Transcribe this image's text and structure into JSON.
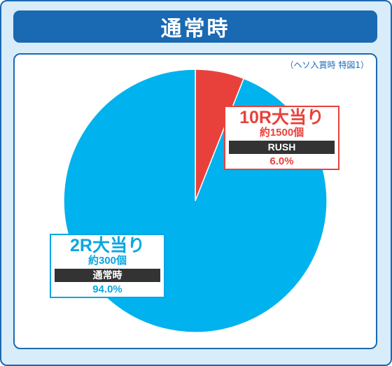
{
  "header": {
    "title": "通常時"
  },
  "note": "（ヘソ入賞時 特図1）",
  "colors": {
    "frame": "#1a69b3",
    "background": "#d8ecf9",
    "rush": "#e8413c",
    "normal": "#00b2ee"
  },
  "chart_data": {
    "type": "pie",
    "title": "通常時",
    "start_angle_deg": 0,
    "direction": "clockwise",
    "slices": [
      {
        "label": "10R大当り",
        "detail": "約1500個",
        "mode": "RUSH",
        "percent_label": "6.0%",
        "value": 6.0,
        "color": "#e8413c"
      },
      {
        "label": "2R大当り",
        "detail": "約300個",
        "mode": "通常時",
        "percent_label": "94.0%",
        "value": 94.0,
        "color": "#00b2ee"
      }
    ]
  }
}
